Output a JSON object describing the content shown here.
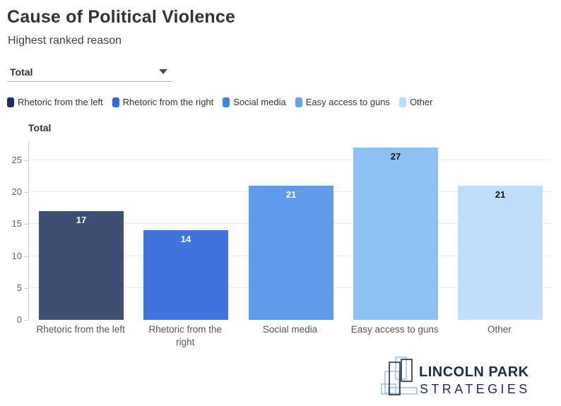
{
  "header": {
    "title": "Cause of Political Violence",
    "subtitle": "Highest ranked reason"
  },
  "filter": {
    "value": "Total"
  },
  "legend": [
    {
      "label": "Rhetoric from the left",
      "color": "#1d2e5e"
    },
    {
      "label": "Rhetoric from the right",
      "color": "#2d68de"
    },
    {
      "label": "Social media",
      "color": "#4185e7"
    },
    {
      "label": "Easy access to guns",
      "color": "#66a3ee"
    },
    {
      "label": "Other",
      "color": "#b9dcfa"
    }
  ],
  "chart_data": {
    "type": "bar",
    "axis_title": "Total",
    "categories": [
      "Rhetoric from the left",
      "Rhetoric from the right",
      "Social media",
      "Easy access to guns",
      "Other"
    ],
    "values": [
      17,
      14,
      21,
      27,
      21
    ],
    "bar_colors": [
      "#3e4f73",
      "#4073dc",
      "#5f9ae8",
      "#8dc0f4",
      "#c0defb"
    ],
    "value_label_colors": [
      "#ffffff",
      "#ffffff",
      "#ffffff",
      "#111111",
      "#111111"
    ],
    "title": "Cause of Political Violence",
    "xlabel": "",
    "ylabel": "Total",
    "ylim": [
      0,
      28
    ],
    "yticks": [
      0,
      5,
      10,
      15,
      20,
      25
    ],
    "grid": true,
    "legend_position": "top"
  },
  "footer": {
    "brand_line1": "LINCOLN PARK",
    "brand_line2": "STRATEGIES",
    "brand_dark_color": "#1e2c4f",
    "brand_light_color": "#a3c3dc"
  }
}
